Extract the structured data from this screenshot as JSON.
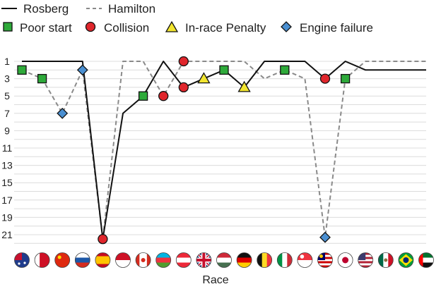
{
  "chart_data": {
    "type": "line",
    "title": "",
    "xlabel": "Race",
    "ylabel": "",
    "ylim": [
      22,
      1
    ],
    "yticks": [
      1,
      3,
      5,
      7,
      9,
      11,
      13,
      15,
      17,
      19,
      21
    ],
    "grid": "horizontal",
    "legend_position": "top-left",
    "x": [
      "AUS",
      "BHR",
      "CHN",
      "RUS",
      "ESP",
      "MON",
      "CAN",
      "AZE",
      "AUT",
      "GBR",
      "HUN",
      "GER",
      "BEL",
      "ITA",
      "SGP",
      "MAS",
      "JPN",
      "USA",
      "MEX",
      "BRA",
      "ABU"
    ],
    "series": [
      {
        "name": "Rosberg",
        "style": "solid",
        "color": "#111111",
        "values": [
          1,
          1,
          1,
          1,
          21.5,
          7,
          5,
          1,
          4,
          3,
          2,
          4,
          1,
          1,
          1,
          3,
          1,
          2,
          2,
          2,
          2
        ]
      },
      {
        "name": "Hamilton",
        "style": "dashed",
        "color": "#8a8a8a",
        "values": [
          2,
          3,
          7,
          2,
          21.5,
          1,
          1,
          5,
          1,
          1,
          1,
          1,
          3,
          2,
          3,
          21.3,
          3,
          1,
          1,
          1,
          1
        ]
      }
    ],
    "markers": [
      {
        "type": "Poor start",
        "x": "AUS",
        "y": 2
      },
      {
        "type": "Poor start",
        "x": "BHR",
        "y": 3
      },
      {
        "type": "Poor start",
        "x": "CAN",
        "y": 5
      },
      {
        "type": "Poor start",
        "x": "HUN",
        "y": 2
      },
      {
        "type": "Poor start",
        "x": "ITA",
        "y": 2
      },
      {
        "type": "Poor start",
        "x": "JPN",
        "y": 3
      },
      {
        "type": "Collision",
        "x": "ESP",
        "y": 21.5
      },
      {
        "type": "Collision",
        "x": "AZE",
        "y": 5
      },
      {
        "type": "Collision",
        "x": "AUT",
        "y": 1
      },
      {
        "type": "Collision",
        "x": "AUT",
        "y": 4
      },
      {
        "type": "Collision",
        "x": "MAS",
        "y": 3
      },
      {
        "type": "In-race Penalty",
        "x": "GBR",
        "y": 3
      },
      {
        "type": "In-race Penalty",
        "x": "GER",
        "y": 4
      },
      {
        "type": "Engine failure",
        "x": "CHN",
        "y": 7
      },
      {
        "type": "Engine failure",
        "x": "RUS",
        "y": 2
      },
      {
        "type": "Engine failure",
        "x": "MAS",
        "y": 21.3
      }
    ],
    "flags": [
      "australia-flag",
      "bahrain-flag",
      "china-flag",
      "russia-flag",
      "spain-flag",
      "monaco-flag",
      "canada-flag",
      "azerbaijan-flag",
      "austria-flag",
      "great-britain-flag",
      "hungary-flag",
      "germany-flag",
      "belgium-flag",
      "italy-flag",
      "singapore-flag",
      "malaysia-flag",
      "japan-flag",
      "usa-flag",
      "mexico-flag",
      "brazil-flag",
      "uae-flag"
    ]
  },
  "legend": {
    "line_items": [
      {
        "label": "Rosberg",
        "style": "solid"
      },
      {
        "label": "Hamilton",
        "style": "dashed"
      }
    ],
    "marker_items": [
      {
        "label": "Poor start",
        "marker": "square",
        "color": "#2eaa3a"
      },
      {
        "label": "Collision",
        "marker": "circle",
        "color": "#e0262c"
      },
      {
        "label": "In-race Penalty",
        "marker": "triangle",
        "color": "#f2e52f"
      },
      {
        "label": "Engine failure",
        "marker": "diamond",
        "color": "#4a8fd1"
      }
    ]
  }
}
